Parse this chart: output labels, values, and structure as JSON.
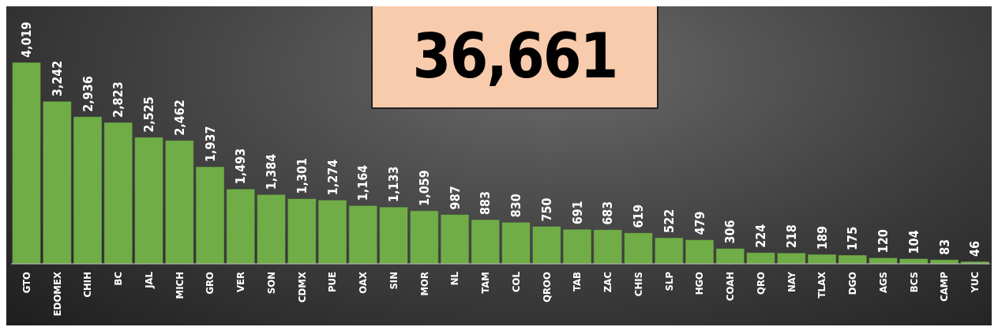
{
  "chart_data": {
    "type": "bar",
    "title": "36,661",
    "categories": [
      "GTO",
      "EDOMEX",
      "CHIH",
      "BC",
      "JAL",
      "MICH",
      "GRO",
      "VER",
      "SON",
      "CDMX",
      "PUE",
      "OAX",
      "SIN",
      "MOR",
      "NL",
      "TAM",
      "COL",
      "QROO",
      "TAB",
      "ZAC",
      "CHIS",
      "SLP",
      "HGO",
      "COAH",
      "QRO",
      "NAY",
      "TLAX",
      "DGO",
      "AGS",
      "BCS",
      "CAMP",
      "YUC"
    ],
    "values": [
      4019,
      3242,
      2936,
      2823,
      2525,
      2462,
      1937,
      1493,
      1384,
      1301,
      1274,
      1164,
      1133,
      1059,
      987,
      883,
      830,
      750,
      691,
      683,
      619,
      522,
      479,
      306,
      224,
      218,
      189,
      175,
      120,
      104,
      83,
      46
    ],
    "value_labels": [
      "4,019",
      "3,242",
      "2,936",
      "2,823",
      "2,525",
      "2,462",
      "1,937",
      "1,493",
      "1,384",
      "1,301",
      "1,274",
      "1,164",
      "1,133",
      "1,059",
      "987",
      "883",
      "830",
      "750",
      "691",
      "683",
      "619",
      "522",
      "479",
      "306",
      "224",
      "218",
      "189",
      "175",
      "120",
      "104",
      "83",
      "46"
    ],
    "color": "#70ad47",
    "grid": false,
    "legend": false
  }
}
